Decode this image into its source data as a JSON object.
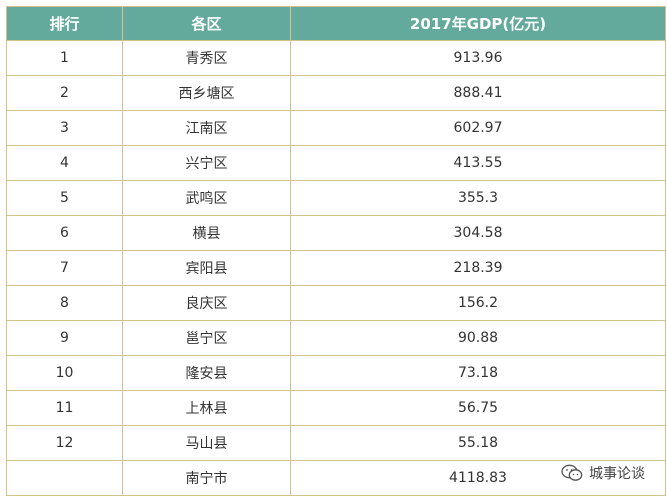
{
  "table": {
    "headers": {
      "rank": "排行",
      "district": "各区",
      "gdp": "2017年GDP(亿元)"
    },
    "rows": [
      {
        "rank": "1",
        "district": "青秀区",
        "gdp": "913.96"
      },
      {
        "rank": "2",
        "district": "西乡塘区",
        "gdp": "888.41"
      },
      {
        "rank": "3",
        "district": "江南区",
        "gdp": "602.97"
      },
      {
        "rank": "4",
        "district": "兴宁区",
        "gdp": "413.55"
      },
      {
        "rank": "5",
        "district": "武鸣区",
        "gdp": "355.3"
      },
      {
        "rank": "6",
        "district": "横县",
        "gdp": "304.58"
      },
      {
        "rank": "7",
        "district": "宾阳县",
        "gdp": "218.39"
      },
      {
        "rank": "8",
        "district": "良庆区",
        "gdp": "156.2"
      },
      {
        "rank": "9",
        "district": "邕宁区",
        "gdp": "90.88"
      },
      {
        "rank": "10",
        "district": "隆安县",
        "gdp": "73.18"
      },
      {
        "rank": "11",
        "district": "上林县",
        "gdp": "56.75"
      },
      {
        "rank": "12",
        "district": "马山县",
        "gdp": "55.18"
      },
      {
        "rank": "",
        "district": "南宁市",
        "gdp": "4118.83"
      }
    ]
  },
  "watermark": {
    "text": "城事论谈",
    "icon": "wechat-icon"
  },
  "colors": {
    "header_bg": "#63a99c",
    "border": "#d2c28e"
  }
}
